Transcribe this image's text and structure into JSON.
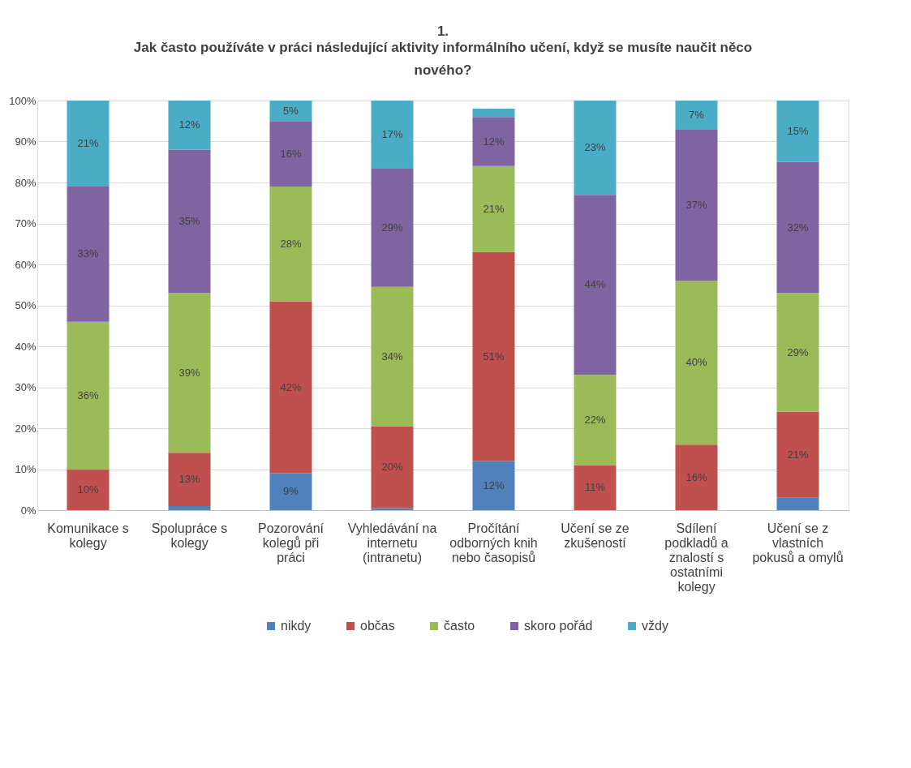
{
  "chart_data": {
    "type": "bar",
    "stacked": true,
    "title": "1.",
    "subtitle": "Jak často používáte v práci následující aktivity informálního učení, když se musíte naučit něco nového?",
    "categories": [
      "Komunikace s kolegy",
      "Spolupráce s kolegy",
      "Pozorování kolegů při práci",
      "Vyhledávání na internetu (intranetu)",
      "Pročítání odborných knih nebo časopisů",
      "Učení se ze zkušeností",
      "Sdílení podkladů a znalostí s ostatními kolegy",
      "Učení se z vlastních pokusů a omylů"
    ],
    "series": [
      {
        "name": "nikdy",
        "color": "#4f81bd",
        "values": [
          0,
          1,
          9,
          0.5,
          12,
          0,
          0,
          3
        ],
        "value_labels": [
          null,
          null,
          "9%",
          null,
          "12%",
          null,
          null,
          null
        ]
      },
      {
        "name": "občas",
        "color": "#c0504d",
        "values": [
          10,
          13,
          42,
          20,
          51,
          11,
          16,
          21
        ],
        "value_labels": [
          "10%",
          "13%",
          "42%",
          "20%",
          "51%",
          "11%",
          "16%",
          "21%"
        ]
      },
      {
        "name": "často",
        "color": "#9bbb59",
        "values": [
          36,
          39,
          28,
          34,
          21,
          22,
          40,
          29
        ],
        "value_labels": [
          "36%",
          "39%",
          "28%",
          "34%",
          "21%",
          "22%",
          "40%",
          "29%"
        ]
      },
      {
        "name": "skoro pořád",
        "color": "#8064a2",
        "values": [
          33,
          35,
          16,
          29,
          12,
          44,
          37,
          32
        ],
        "value_labels": [
          "33%",
          "35%",
          "16%",
          "29%",
          "12%",
          "44%",
          "37%",
          "32%"
        ]
      },
      {
        "name": "vždy",
        "color": "#4bacc6",
        "values": [
          21,
          12,
          5,
          16.5,
          2,
          23,
          7,
          15
        ],
        "value_labels": [
          "21%",
          "12%",
          "5%",
          "17%",
          null,
          "23%",
          "7%",
          "15%"
        ]
      }
    ],
    "ylim": [
      0,
      100
    ],
    "yticks": [
      {
        "value": 0,
        "label": "0%"
      },
      {
        "value": 10,
        "label": "10%"
      },
      {
        "value": 20,
        "label": "20%"
      },
      {
        "value": 30,
        "label": "30%"
      },
      {
        "value": 40,
        "label": "40%"
      },
      {
        "value": 50,
        "label": "50%"
      },
      {
        "value": 60,
        "label": "60%"
      },
      {
        "value": 70,
        "label": "70%"
      },
      {
        "value": 80,
        "label": "80%"
      },
      {
        "value": 90,
        "label": "90%"
      },
      {
        "value": 100,
        "label": "100%"
      }
    ],
    "grid": "y",
    "legend": "bottom"
  }
}
